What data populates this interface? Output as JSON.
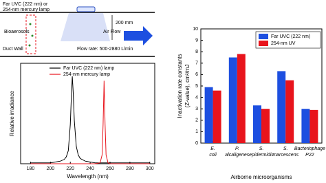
{
  "diagram": {
    "lamp_label": [
      "Far UVC (222 nm) or",
      "254-nm mercury lamp"
    ],
    "height_label": "200 mm",
    "bioaerosols": "Bioaerosols",
    "air_flow": "Air Flow",
    "duct_wall": "Duct Wall",
    "flow_rate": "Flow rate: 500-2880 L/min"
  },
  "chart_data": [
    {
      "type": "line",
      "xlabel": "Wavelength (nm)",
      "ylabel": "Relative irradiance",
      "x": [
        180,
        190,
        200,
        205,
        210,
        214,
        216,
        218,
        220,
        221,
        222,
        223,
        224,
        226,
        228,
        230,
        235,
        240,
        245,
        250,
        252,
        253,
        254,
        255,
        256,
        258,
        260,
        270,
        280,
        290,
        300
      ],
      "series": [
        {
          "name": "Far UVC (222 nm) lamp",
          "color": "#000000",
          "values": [
            0.01,
            0.01,
            0.01,
            0.02,
            0.03,
            0.05,
            0.08,
            0.15,
            0.45,
            0.75,
            1.0,
            0.8,
            0.5,
            0.2,
            0.1,
            0.06,
            0.03,
            0.02,
            0.01,
            0.01,
            0.01,
            0.01,
            0.01,
            0.01,
            0.01,
            0.01,
            0.01,
            0.01,
            0.01,
            0.01,
            0.01
          ]
        },
        {
          "name": "254-nm mercury lamp",
          "color": "#e8141c",
          "values": [
            0,
            0,
            0,
            0,
            0,
            0,
            0,
            0,
            0,
            0,
            0,
            0,
            0,
            0,
            0,
            0,
            0,
            0,
            0,
            0.01,
            0.1,
            0.45,
            0.95,
            0.45,
            0.1,
            0.01,
            0,
            0,
            0,
            0,
            0
          ]
        }
      ],
      "xlim": [
        170,
        305
      ],
      "xticks": [
        180,
        200,
        220,
        240,
        260,
        280,
        300
      ],
      "ylim": [
        0,
        1.15
      ]
    },
    {
      "type": "bar",
      "xlabel": "Airborne microorganisms",
      "ylabel": [
        "Inactivation rate constants",
        "(Z-value), cm²/mJ"
      ],
      "categories": [
        [
          "E.",
          "coli"
        ],
        [
          "P.",
          "alcaligenes"
        ],
        [
          "S.",
          "epidermidis"
        ],
        [
          "S.",
          "marcescens"
        ],
        [
          "Bacteriophage",
          "P22"
        ]
      ],
      "series": [
        {
          "name": "Far UVC (222 nm)",
          "color": "#1d4fe0",
          "values": [
            4.9,
            7.5,
            3.3,
            6.3,
            3.0
          ]
        },
        {
          "name": "254-nm UV",
          "color": "#e8141c",
          "values": [
            4.6,
            7.8,
            3.0,
            5.5,
            2.9
          ]
        }
      ],
      "ylim": [
        0,
        10
      ],
      "yticks": [
        0,
        1,
        2,
        3,
        4,
        5,
        6,
        7,
        8,
        9,
        10
      ],
      "legend": "upper right"
    }
  ]
}
